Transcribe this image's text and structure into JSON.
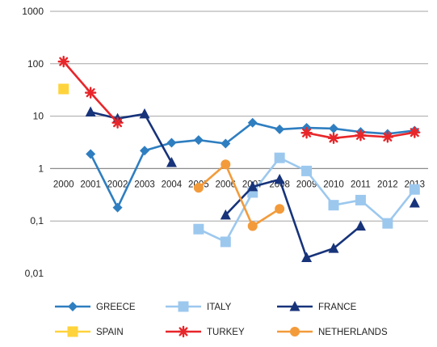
{
  "chart_data": {
    "type": "line",
    "y_scale": "log",
    "ylim": [
      0.01,
      1000
    ],
    "y_ticks": [
      "1000",
      "100",
      "10",
      "1",
      "0,1",
      "0,01"
    ],
    "grid": "horizontal",
    "legend_position": "bottom",
    "x": [
      "2000",
      "2001",
      "2002",
      "2003",
      "2004",
      "2005",
      "2006",
      "2007",
      "2008",
      "2009",
      "2010",
      "2011",
      "2012",
      "2013"
    ],
    "series": [
      {
        "name": "GREECE",
        "color": "#2E7EC0",
        "marker": "diamond",
        "values": [
          null,
          1.9,
          0.18,
          2.2,
          3.1,
          3.5,
          3.0,
          7.5,
          5.6,
          6.0,
          5.8,
          5.0,
          4.6,
          5.3
        ]
      },
      {
        "name": "ITALY",
        "color": "#9CC8EE",
        "marker": "square",
        "values": [
          null,
          null,
          null,
          null,
          null,
          0.07,
          0.04,
          0.35,
          1.6,
          0.9,
          0.2,
          0.25,
          0.09,
          0.4
        ]
      },
      {
        "name": "FRANCE",
        "color": "#17337A",
        "marker": "triangle",
        "values": [
          null,
          12,
          9,
          11,
          1.3,
          null,
          0.13,
          0.45,
          0.62,
          0.02,
          0.03,
          0.08,
          null,
          0.22
        ]
      },
      {
        "name": "SPAIN",
        "color": "#FFD33B",
        "marker": "square",
        "values": [
          33,
          null,
          null,
          null,
          null,
          null,
          null,
          null,
          null,
          null,
          null,
          null,
          null,
          null
        ]
      },
      {
        "name": "TURKEY",
        "color": "#E8262A",
        "marker": "star",
        "values": [
          110,
          28,
          7.5,
          null,
          null,
          null,
          null,
          null,
          null,
          4.8,
          3.8,
          4.3,
          4.0,
          4.9
        ]
      },
      {
        "name": "NETHERLANDS",
        "color": "#F39B3A",
        "marker": "circle",
        "values": [
          null,
          null,
          null,
          null,
          null,
          0.43,
          1.2,
          0.08,
          0.17,
          null,
          null,
          null,
          null,
          null
        ]
      }
    ]
  }
}
